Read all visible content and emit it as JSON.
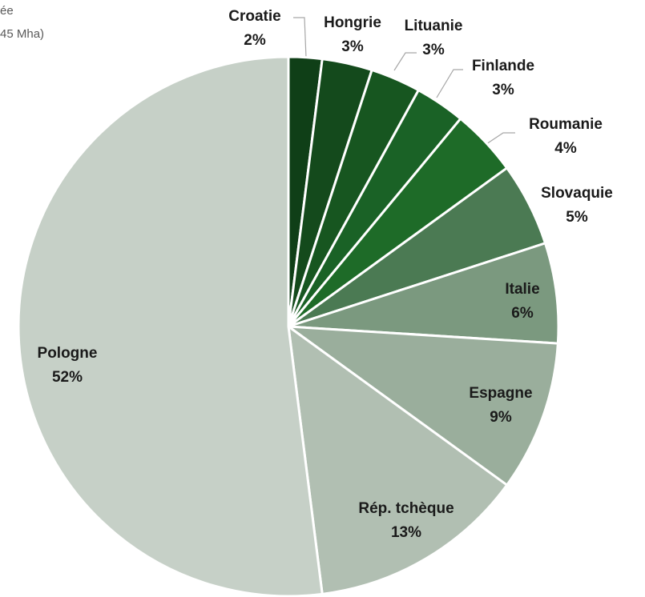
{
  "chart_data": {
    "type": "pie",
    "title": "ée",
    "subtitle": "45 Mha)",
    "categories": [
      "Croatie",
      "Hongrie",
      "Lituanie",
      "Finlande",
      "Roumanie",
      "Slovaquie",
      "Italie",
      "Espagne",
      "Rép. tchèque",
      "Pologne"
    ],
    "values": [
      2,
      3,
      3,
      3,
      4,
      5,
      6,
      9,
      13,
      52
    ],
    "value_labels": [
      "2%",
      "3%",
      "3%",
      "3%",
      "4%",
      "5%",
      "6%",
      "9%",
      "13%",
      "52%"
    ],
    "colors": [
      "#0f3f17",
      "#144a1c",
      "#175620",
      "#1a6226",
      "#1e6b28",
      "#4b7a53",
      "#7b997f",
      "#9aae9c",
      "#b1bfb2",
      "#c6d0c7"
    ]
  }
}
